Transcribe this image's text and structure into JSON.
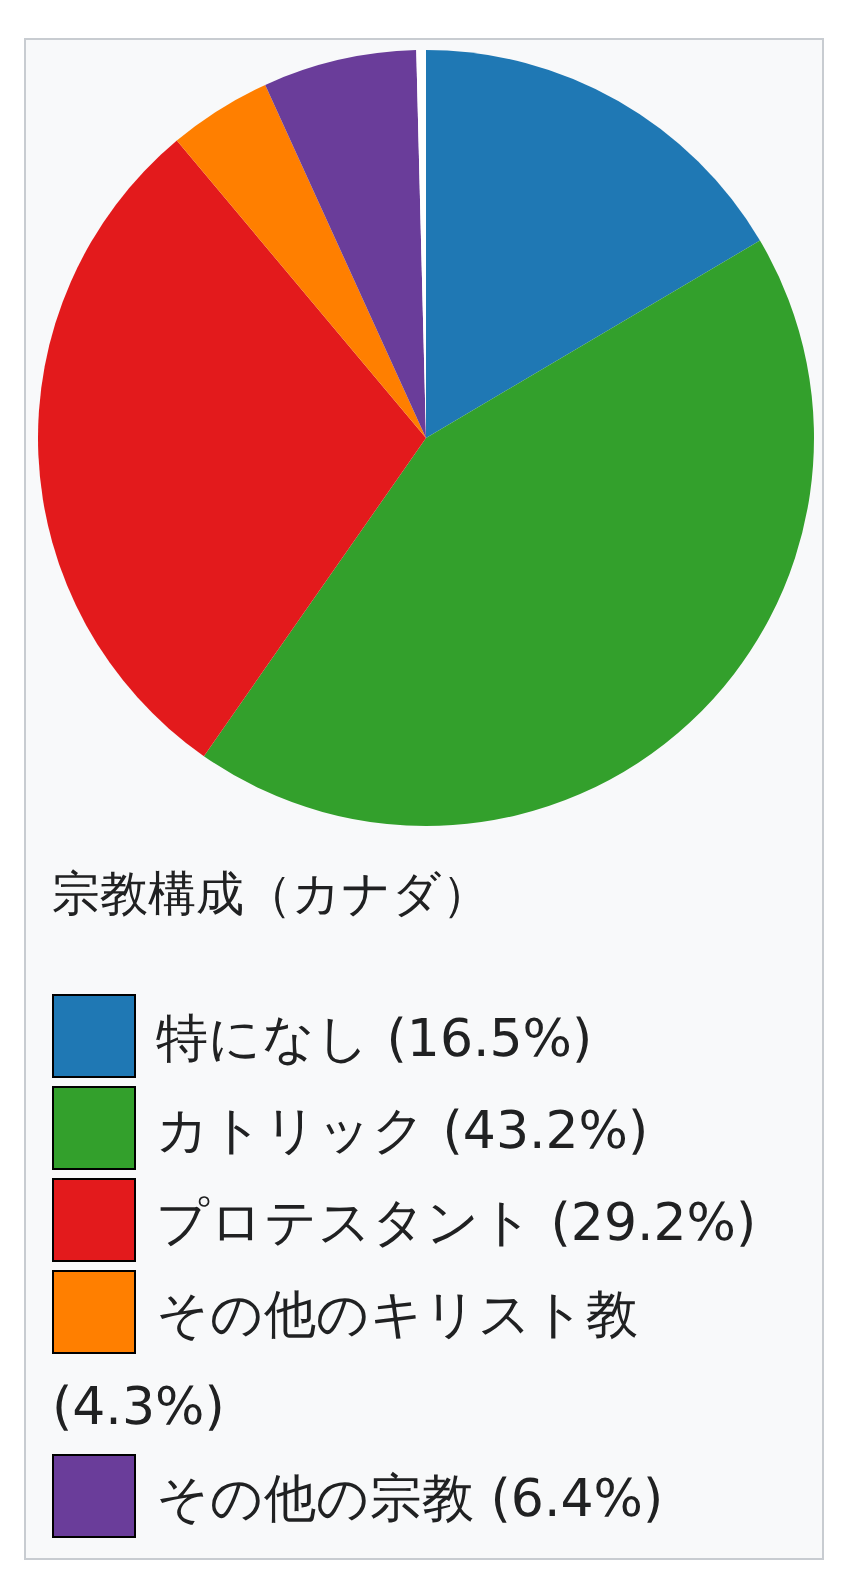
{
  "chart_data": {
    "type": "pie",
    "title": "宗教構成（カナダ）",
    "categories": [
      "特になし (16.5%)",
      "カトリック (43.2%)",
      "プロテスタント (29.2%)",
      "その他のキリスト教 (4.3%)",
      "その他の宗教 (6.4%)",
      null
    ],
    "values": [
      16.5,
      43.2,
      29.2,
      4.3,
      6.4,
      0.4
    ],
    "colors": [
      "#1f78b4",
      "#33a02c",
      "#e31a1c",
      "#ff7f00",
      "#6a3d9a",
      "#ffffff"
    ],
    "legend": "bottom"
  }
}
